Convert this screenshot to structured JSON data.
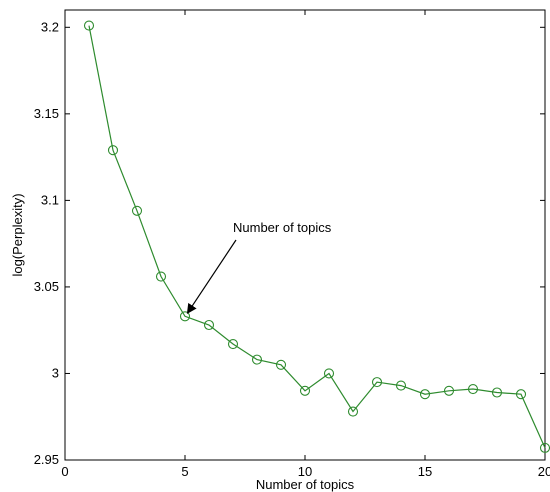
{
  "chart_data": {
    "type": "line",
    "title": "",
    "xlabel": "Number of topics",
    "ylabel": "log(Perplexity)",
    "xlim": [
      0,
      20
    ],
    "ylim": [
      2.95,
      3.21
    ],
    "xticks": [
      0,
      5,
      10,
      15,
      20
    ],
    "xtick_labels": [
      "0",
      "5",
      "10",
      "15",
      "20"
    ],
    "yticks": [
      2.95,
      3.0,
      3.05,
      3.1,
      3.15,
      3.2
    ],
    "ytick_labels": [
      "2.95",
      "3",
      "3.05",
      "3.1",
      "3.15",
      "3.2"
    ],
    "grid": false,
    "series": [
      {
        "color": "#2e8b2e",
        "marker": "circle",
        "x": [
          1,
          2,
          3,
          4,
          5,
          6,
          7,
          8,
          9,
          10,
          11,
          12,
          13,
          14,
          15,
          16,
          17,
          18,
          19,
          20
        ],
        "y": [
          3.201,
          3.129,
          3.094,
          3.056,
          3.033,
          3.028,
          3.017,
          3.008,
          3.005,
          2.99,
          3.0,
          2.978,
          2.995,
          2.993,
          2.988,
          2.99,
          2.991,
          2.989,
          2.988,
          2.957
        ]
      }
    ],
    "annotations": [
      {
        "text": "Number of topics",
        "arrow_to": {
          "x": 5,
          "y": 3.033
        }
      }
    ]
  }
}
